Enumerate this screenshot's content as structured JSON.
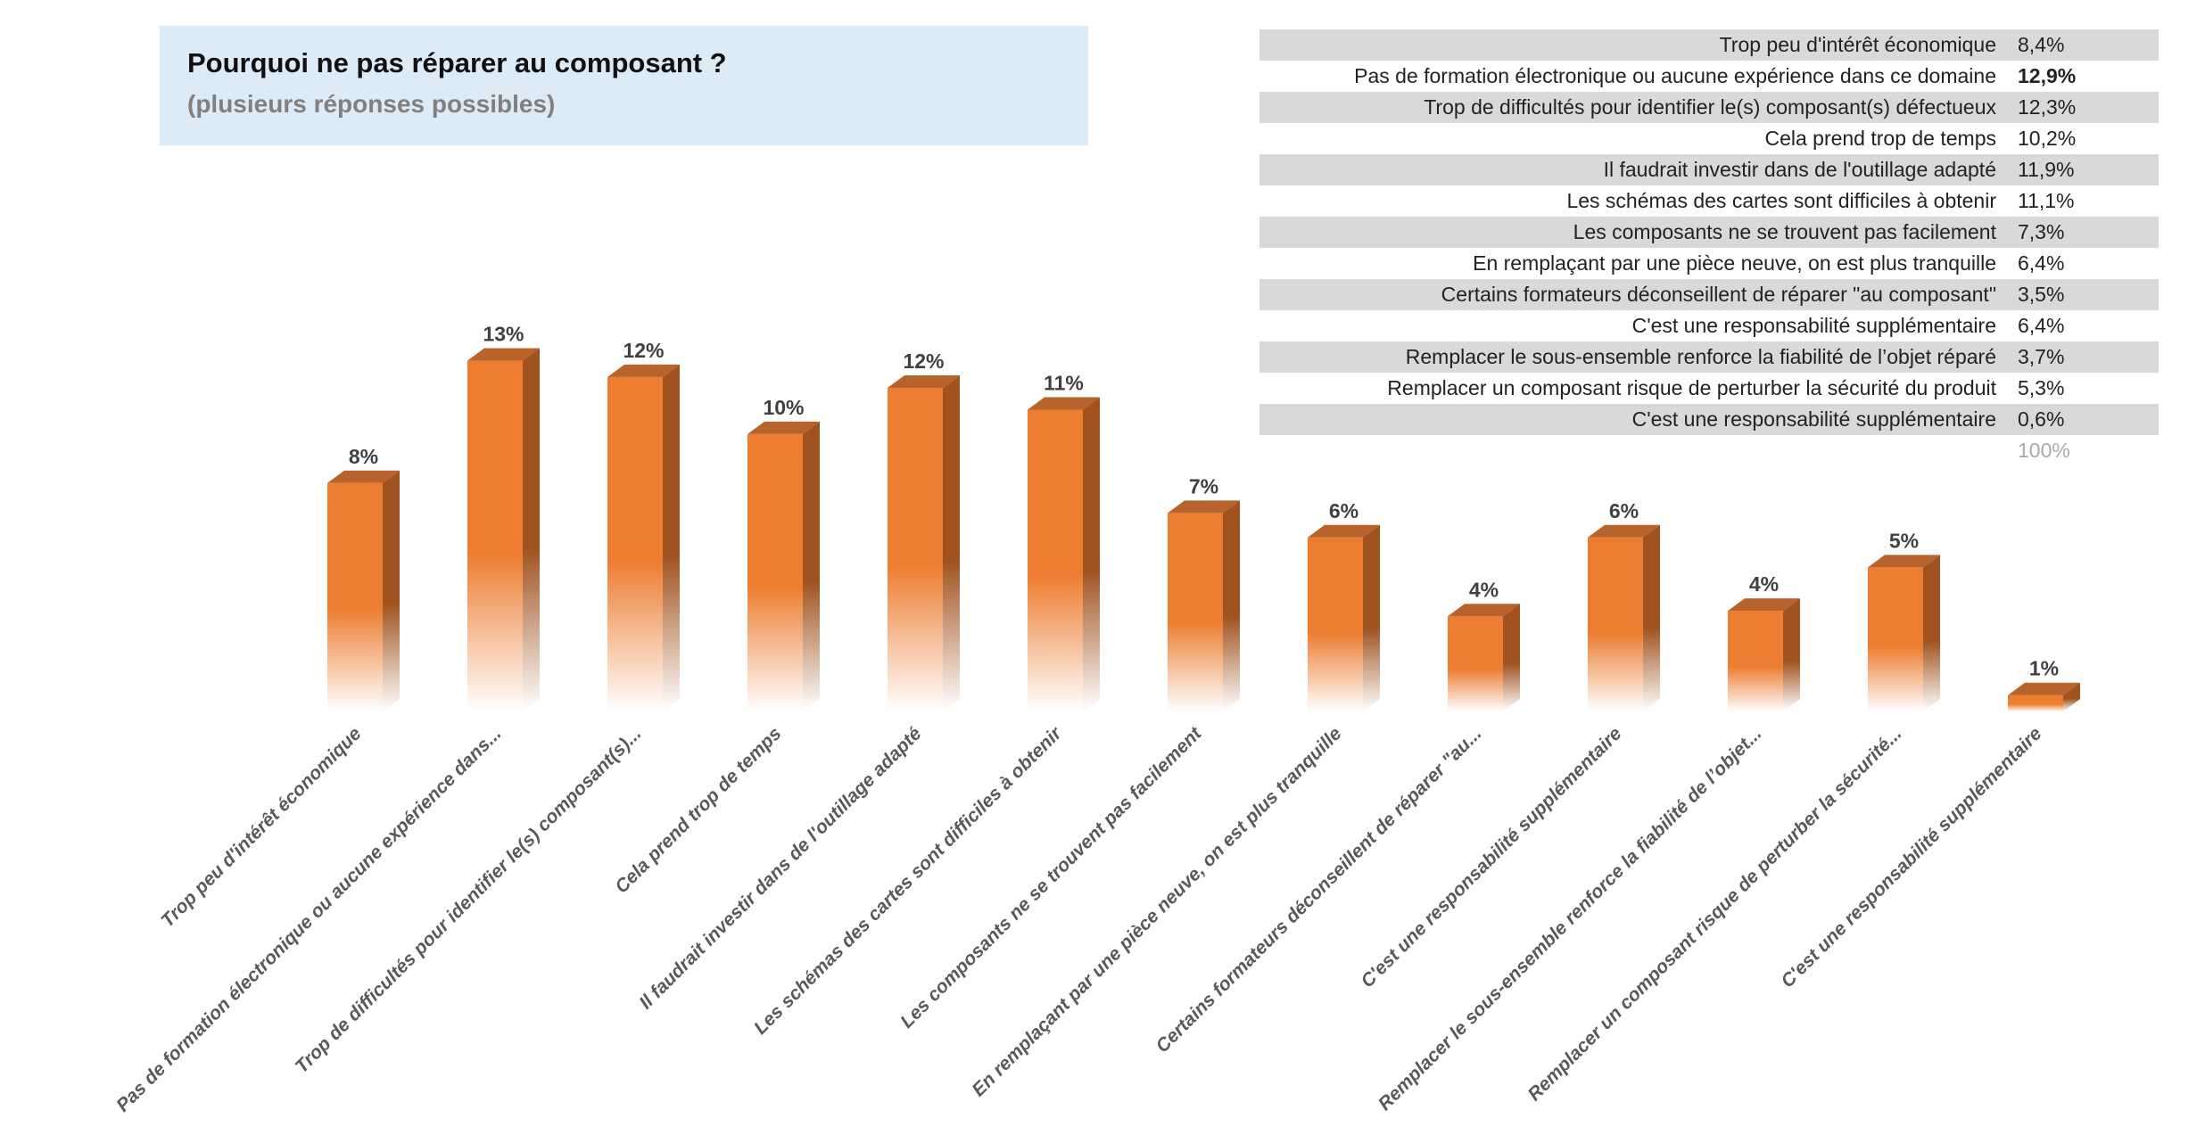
{
  "title": "Pourquoi ne pas réparer au composant ?",
  "subtitle": "(plusieurs réponses possibles)",
  "table": {
    "rows": [
      {
        "label": "Trop peu d'intérêt économique",
        "value": "8,4%"
      },
      {
        "label": "Pas de formation électronique ou aucune expérience dans ce domaine",
        "value": "12,9%",
        "bold": true
      },
      {
        "label": "Trop de difficultés pour identifier le(s) composant(s) défectueux",
        "value": "12,3%"
      },
      {
        "label": "Cela prend trop de temps",
        "value": "10,2%"
      },
      {
        "label": "Il faudrait investir dans de l'outillage adapté",
        "value": "11,9%"
      },
      {
        "label": "Les schémas des cartes sont difficiles à obtenir",
        "value": "11,1%"
      },
      {
        "label": "Les composants ne se trouvent pas facilement",
        "value": "7,3%"
      },
      {
        "label": "En remplaçant par une pièce neuve, on est plus tranquille",
        "value": "6,4%"
      },
      {
        "label": "Certains formateurs déconseillent de réparer \"au composant\"",
        "value": "3,5%"
      },
      {
        "label": "C'est une responsabilité supplémentaire",
        "value": "6,4%"
      },
      {
        "label": "Remplacer le sous-ensemble renforce la fiabilité de l’objet réparé",
        "value": "3,7%"
      },
      {
        "label": "Remplacer un composant risque de perturber la sécurité du produit",
        "value": "5,3%"
      },
      {
        "label": "C'est une responsabilité supplémentaire",
        "value": "0,6%"
      }
    ],
    "total": "100%"
  },
  "chart_data": {
    "type": "bar",
    "style": "3d-column",
    "categories": [
      "Trop peu d'intérêt économique",
      "Pas de formation électronique ou aucune expérience dans...",
      "Trop de difficultés pour identifier le(s) composant(s)...",
      "Cela prend trop de temps",
      "Il faudrait investir dans de l'outillage adapté",
      "Les schémas des cartes sont difficiles à obtenir",
      "Les composants ne se trouvent pas facilement",
      "En remplaçant par une pièce neuve, on est plus tranquille",
      "Certains formateurs déconseillent de réparer \"au...",
      "C'est une responsabilité supplémentaire",
      "Remplacer le sous-ensemble renforce la fiabilité de l’objet...",
      "Remplacer un composant risque de perturber la sécurité...",
      "C'est une responsabilité supplémentaire"
    ],
    "values": [
      8.4,
      12.9,
      12.3,
      10.2,
      11.9,
      11.1,
      7.3,
      6.4,
      3.5,
      6.4,
      3.7,
      5.3,
      0.6
    ],
    "data_labels": [
      "8%",
      "13%",
      "12%",
      "10%",
      "12%",
      "11%",
      "7%",
      "6%",
      "4%",
      "6%",
      "4%",
      "5%",
      "1%"
    ],
    "unit": "%",
    "ylim": [
      0,
      13
    ],
    "grid": false,
    "legend": "none",
    "colors": {
      "bar": "#ED7D31",
      "side": "#A0521F",
      "top": "#B8632B",
      "label": "#404040",
      "category": "#595959"
    }
  }
}
